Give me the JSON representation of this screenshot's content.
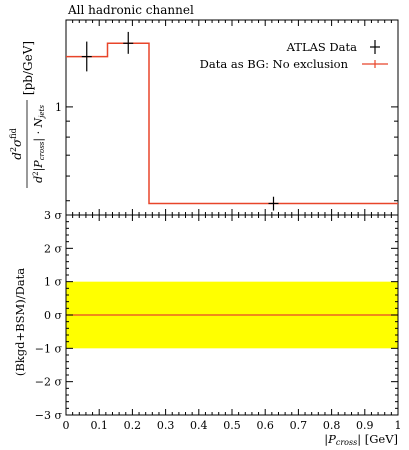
{
  "chart_data": [
    {
      "type": "line",
      "title": "All hadronic channel",
      "ylabel_parts": {
        "mid": "[pb/GeV]"
      },
      "yscale": "log",
      "ylim": [
        0.45,
        1.9
      ],
      "xlim": [
        0,
        1
      ],
      "y_tick_labels": [
        "1"
      ],
      "legend": {
        "position": "top-right",
        "entries": [
          "ATLAS Data",
          "Data as BG: No exclusion"
        ]
      },
      "series": [
        {
          "name": "ATLAS Data",
          "type": "points",
          "color": "#000000",
          "points": [
            {
              "x": 0.0625,
              "y": 1.45,
              "yerr_low": 1.3,
              "yerr_high": 1.62
            },
            {
              "x": 0.1875,
              "y": 1.6,
              "yerr_low": 1.48,
              "yerr_high": 1.74
            },
            {
              "x": 0.625,
              "y": 0.49,
              "yerr_low": 0.465,
              "yerr_high": 0.515
            }
          ]
        },
        {
          "name": "Data as BG: No exclusion",
          "type": "step",
          "color": "#e8452a",
          "bins": [
            {
              "x0": 0.0,
              "x1": 0.125,
              "y": 1.45
            },
            {
              "x0": 0.125,
              "x1": 0.25,
              "y": 1.6
            },
            {
              "x0": 0.25,
              "x1": 1.0,
              "y": 0.49
            }
          ]
        }
      ]
    },
    {
      "type": "line",
      "ylabel": "(Bkgd+BSM)/Data",
      "xlabel_unit": "[GeV]",
      "xlim": [
        0,
        1
      ],
      "ylim": [
        -3,
        3
      ],
      "x_ticks": [
        0,
        0.1,
        0.2,
        0.3,
        0.4,
        0.5,
        0.6,
        0.7,
        0.8,
        0.9,
        1
      ],
      "x_tick_labels": [
        "0",
        "0.1",
        "0.2",
        "0.3",
        "0.4",
        "0.5",
        "0.6",
        "0.7",
        "0.8",
        "0.9",
        "1"
      ],
      "y_ticks": [
        -3,
        -2,
        -1,
        0,
        1,
        2,
        3
      ],
      "y_tick_labels": [
        "−3 σ",
        "−2 σ",
        "−1 σ",
        "0 σ",
        "1 σ",
        "2 σ",
        "3 σ"
      ],
      "band": {
        "low": -1,
        "high": 1,
        "color": "#ffff00"
      },
      "series": [
        {
          "name": "Data as BG: No exclusion",
          "color": "#e8452a",
          "values": [
            0,
            0
          ]
        }
      ]
    }
  ]
}
